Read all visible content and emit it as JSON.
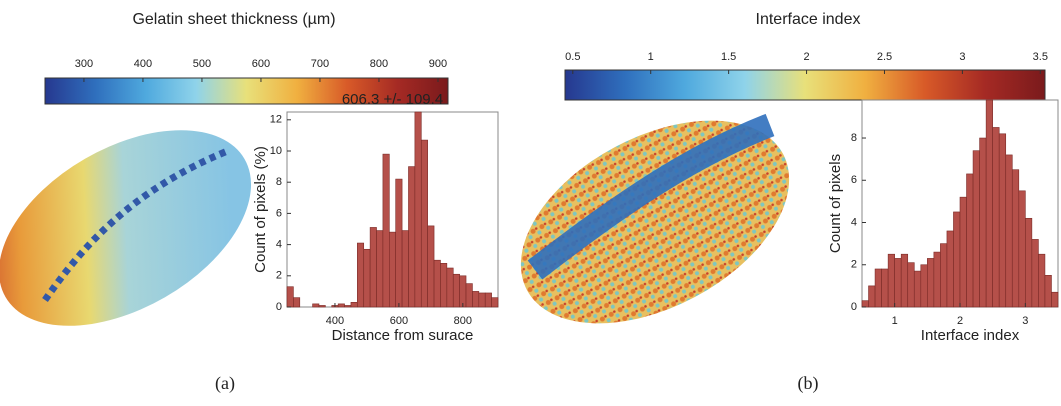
{
  "chart_data": [
    {
      "type": "colorbar",
      "title": "Gelatin sheet thickness (µm)",
      "xlim": [
        234,
        917
      ],
      "xticks": [
        300,
        400,
        500,
        600,
        700,
        800,
        900
      ],
      "colors": [
        "#26388f",
        "#2f6fbd",
        "#4fa9de",
        "#8fd3ea",
        "#e8e07a",
        "#f0b040",
        "#d85a28",
        "#a52a24",
        "#7a1a1c"
      ]
    },
    {
      "type": "histogram",
      "title": "606.3 +/- 109.4",
      "xlabel": "Distance from surace",
      "ylabel": "Count of pixels (%)",
      "color": "#b5504a",
      "bins": [
        250,
        270,
        290,
        310,
        330,
        350,
        370,
        390,
        410,
        430,
        450,
        470,
        490,
        510,
        530,
        550,
        570,
        590,
        610,
        630,
        650,
        670,
        690,
        710,
        730,
        750,
        770,
        790,
        810,
        830,
        850,
        870,
        890,
        910
      ],
      "values": [
        1.3,
        0.6,
        0,
        0,
        0.2,
        0.1,
        0,
        0.1,
        0.2,
        0.1,
        0.3,
        4.1,
        3.7,
        5.1,
        4.9,
        9.8,
        4.8,
        8.2,
        4.9,
        9.0,
        12.5,
        10.7,
        5.2,
        3.0,
        2.8,
        2.5,
        2.1,
        2.0,
        1.5,
        1.0,
        0.9,
        0.9,
        0.6
      ],
      "xlim": [
        250,
        910
      ],
      "xticks": [
        400,
        600,
        800
      ],
      "ylim": [
        0,
        12.5
      ],
      "yticks": [
        0,
        2,
        4,
        6,
        8,
        10,
        12
      ]
    },
    {
      "type": "colorbar",
      "title": "Interface index",
      "xlim": [
        0.45,
        3.53
      ],
      "xticks": [
        0.5,
        1,
        1.5,
        2,
        2.5,
        3,
        3.5
      ],
      "colors": [
        "#26388f",
        "#2f6fbd",
        "#4fa9de",
        "#8fd3ea",
        "#e8e07a",
        "#f0b040",
        "#d85a28",
        "#a52a24",
        "#7a1a1c"
      ]
    },
    {
      "type": "histogram",
      "xlabel": "Interface index",
      "ylabel": "Count of pixels",
      "color": "#b5504a",
      "bins": [
        0.5,
        0.6,
        0.7,
        0.8,
        0.9,
        1.0,
        1.1,
        1.2,
        1.3,
        1.4,
        1.5,
        1.6,
        1.7,
        1.8,
        1.9,
        2.0,
        2.1,
        2.2,
        2.3,
        2.4,
        2.5,
        2.6,
        2.7,
        2.8,
        2.9,
        3.0,
        3.1,
        3.2,
        3.3,
        3.4,
        3.5
      ],
      "values": [
        0.3,
        1.0,
        1.8,
        1.8,
        2.5,
        2.3,
        2.5,
        2.1,
        1.7,
        2.0,
        2.3,
        2.6,
        3.0,
        3.6,
        4.5,
        5.2,
        6.3,
        7.4,
        8.0,
        9.8,
        8.5,
        8.2,
        7.2,
        6.5,
        5.5,
        4.2,
        3.2,
        2.5,
        1.5,
        0.7
      ],
      "xlim": [
        0.5,
        3.5
      ],
      "xticks": [
        1,
        2,
        3
      ],
      "ylim": [
        0,
        9.8
      ],
      "yticks": [
        0,
        2,
        4,
        6,
        8
      ]
    }
  ],
  "captions": [
    "(a)",
    "(b)"
  ]
}
